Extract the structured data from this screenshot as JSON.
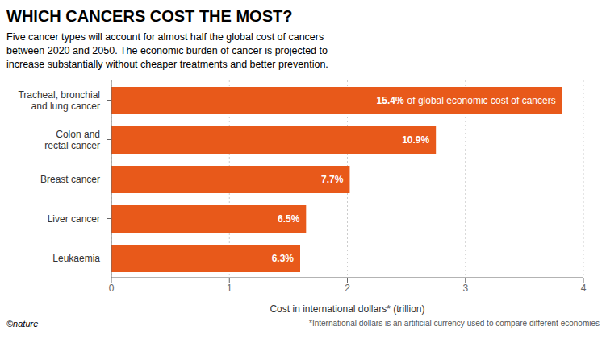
{
  "chart_data": {
    "type": "bar",
    "orientation": "horizontal",
    "title": "WHICH CANCERS COST THE MOST?",
    "subtitle": "Five cancer types will account for almost half the global cost of cancers\nbetween 2020 and 2050. The economic burden of cancer is projected to\nincrease substantially without cheaper treatments and better prevention.",
    "categories": [
      "Tracheal, bronchial\nand lung cancer",
      "Colon and\nrectal cancer",
      "Breast cancer",
      "Liver cancer",
      "Leukaemia"
    ],
    "values": [
      3.82,
      2.75,
      2.02,
      1.65,
      1.6
    ],
    "percent_labels": [
      "15.4%",
      "10.9%",
      "7.7%",
      "6.5%",
      "6.3%"
    ],
    "bar_label_note": "of global economic cost of cancers",
    "color": "#E8591A",
    "xlim": [
      0,
      4
    ],
    "xticks": [
      0,
      1,
      2,
      3,
      4
    ],
    "xlabel": "Cost in international dollars* (trillion)",
    "grid": true,
    "footnote": "*International dollars is an artificial currency used to compare different economies",
    "credit": "©nature"
  }
}
